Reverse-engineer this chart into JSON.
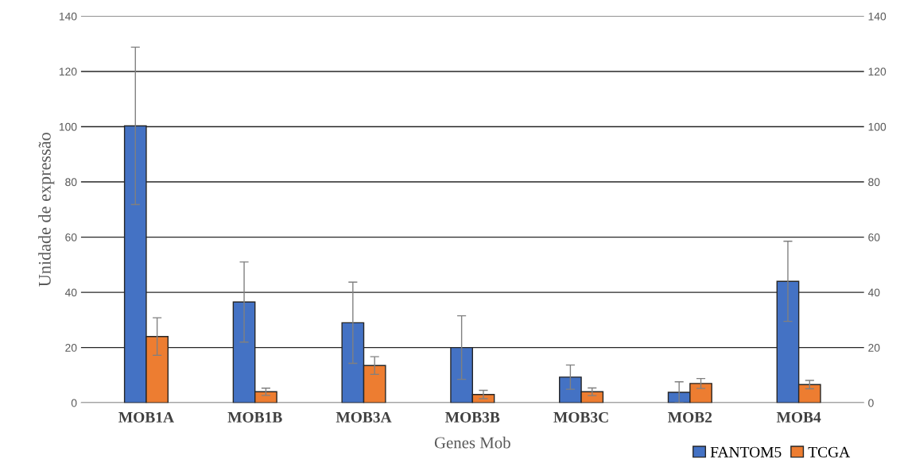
{
  "chart_data": {
    "type": "bar",
    "xlabel": "Genes Mob",
    "ylabel": "Unidade de expressão",
    "categories": [
      "MOB1A",
      "MOB1B",
      "MOB3A",
      "MOB3B",
      "MOB3C",
      "MOB2",
      "MOB4"
    ],
    "series": [
      {
        "name": "FANTOM5",
        "color": "#4472c4",
        "values": [
          100.3,
          36.5,
          29,
          20,
          9.3,
          3.8,
          44
        ],
        "errors": [
          28.5,
          14.5,
          14.7,
          11.5,
          4.4,
          3.8,
          14.5
        ]
      },
      {
        "name": "TCGA",
        "color": "#ed7d31",
        "values": [
          24,
          4,
          13.5,
          3,
          4,
          7,
          6.6
        ],
        "errors": [
          6.8,
          1.3,
          3.2,
          1.5,
          1.4,
          1.8,
          1.5
        ]
      }
    ],
    "ylim": [
      0,
      140
    ],
    "yticks": [
      0,
      20,
      40,
      60,
      80,
      100,
      120,
      140
    ],
    "y2lim": [
      0,
      140
    ],
    "y2ticks": [
      0,
      20,
      40,
      60,
      80,
      100,
      120,
      140
    ],
    "grid": "y",
    "legend": "bottom right"
  }
}
